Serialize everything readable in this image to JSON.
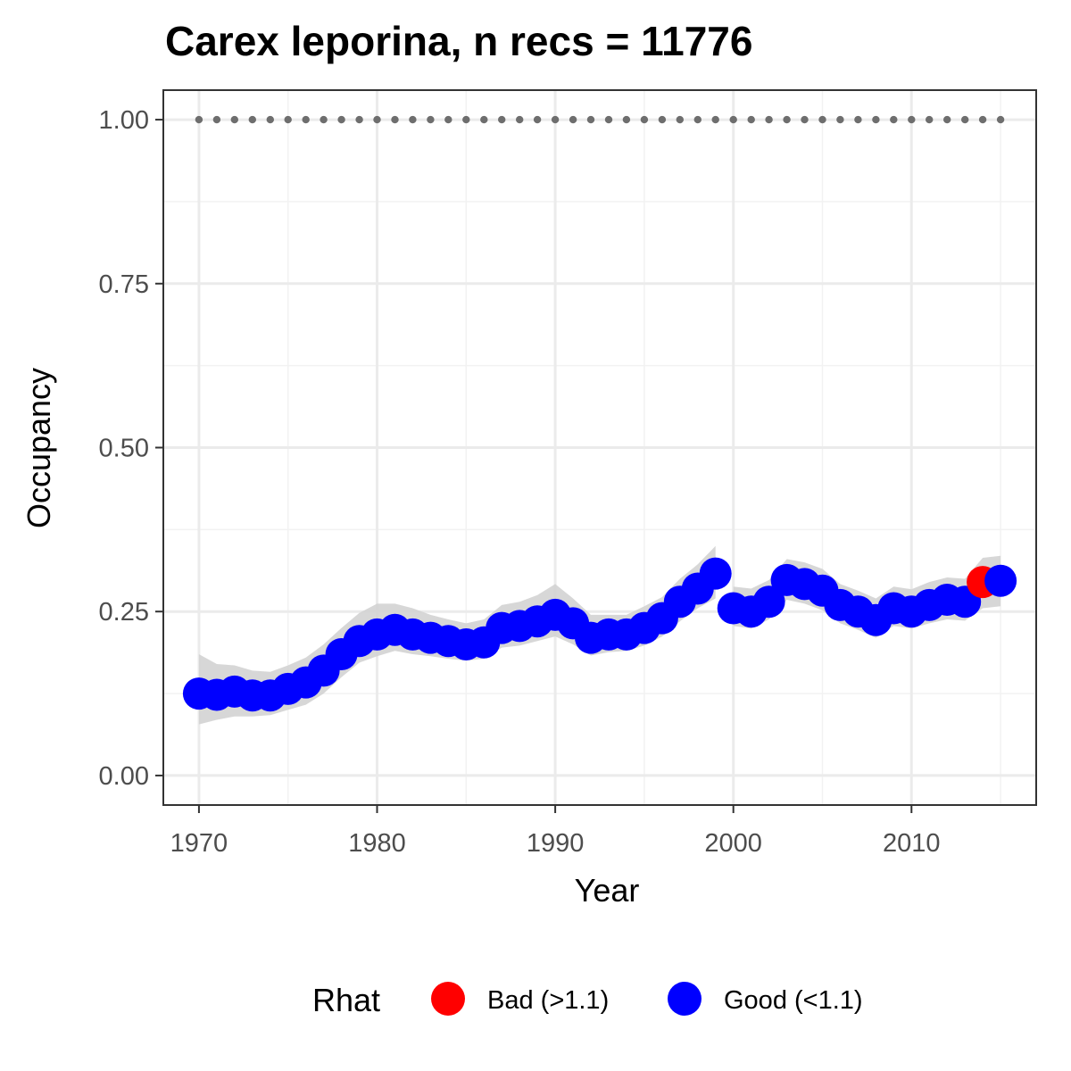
{
  "chart_data": {
    "type": "scatter",
    "title": "Carex leporina, n recs = 11776",
    "xlabel": "Year",
    "ylabel": "Occupancy",
    "xlim": [
      1968,
      2017
    ],
    "ylim": [
      -0.045,
      1.045
    ],
    "x_ticks": [
      1970,
      1980,
      1990,
      2000,
      2010
    ],
    "x_tick_labels": [
      "1970",
      "1980",
      "1990",
      "2000",
      "2010"
    ],
    "y_ticks": [
      0,
      0.25,
      0.5,
      0.75,
      1
    ],
    "y_tick_labels": [
      "0.00",
      "0.25",
      "0.50",
      "0.75",
      "1.00"
    ],
    "grid": true,
    "legend": {
      "title": "Rhat",
      "placement": "bottom",
      "entries": [
        {
          "label": "Bad (>1.1)",
          "color": "#ff0000"
        },
        {
          "label": "Good (<1.1)",
          "color": "#0000ff"
        }
      ]
    },
    "colors": {
      "bad": "#ff0000",
      "good": "#0000ff",
      "ribbon": "#d3d3d3",
      "reference": "#6e6e6e"
    },
    "reference_line": {
      "y": 1.0,
      "style": "dotted"
    },
    "series": [
      {
        "years": [
          1970,
          1971,
          1972,
          1973,
          1974,
          1975,
          1976,
          1977,
          1978,
          1979,
          1980,
          1981,
          1982,
          1983,
          1984,
          1985,
          1986,
          1987,
          1988,
          1989,
          1990,
          1991,
          1992,
          1993,
          1994,
          1995,
          1996,
          1997,
          1998,
          1999
        ],
        "mean": [
          0.125,
          0.123,
          0.128,
          0.122,
          0.122,
          0.132,
          0.142,
          0.16,
          0.185,
          0.205,
          0.215,
          0.222,
          0.215,
          0.21,
          0.205,
          0.2,
          0.203,
          0.225,
          0.228,
          0.235,
          0.245,
          0.232,
          0.21,
          0.215,
          0.215,
          0.225,
          0.24,
          0.265,
          0.285,
          0.308
        ],
        "lower": [
          0.078,
          0.085,
          0.09,
          0.09,
          0.092,
          0.1,
          0.108,
          0.125,
          0.15,
          0.172,
          0.182,
          0.19,
          0.185,
          0.182,
          0.178,
          0.175,
          0.178,
          0.195,
          0.198,
          0.205,
          0.212,
          0.2,
          0.183,
          0.188,
          0.19,
          0.198,
          0.212,
          0.235,
          0.255,
          0.27
        ],
        "upper": [
          0.185,
          0.17,
          0.168,
          0.16,
          0.158,
          0.168,
          0.18,
          0.2,
          0.225,
          0.248,
          0.262,
          0.262,
          0.255,
          0.245,
          0.238,
          0.232,
          0.238,
          0.26,
          0.265,
          0.275,
          0.292,
          0.27,
          0.245,
          0.245,
          0.245,
          0.258,
          0.272,
          0.3,
          0.322,
          0.35
        ],
        "rhat": [
          "good",
          "good",
          "good",
          "good",
          "good",
          "good",
          "good",
          "good",
          "good",
          "good",
          "good",
          "good",
          "good",
          "good",
          "good",
          "good",
          "good",
          "good",
          "good",
          "good",
          "good",
          "good",
          "good",
          "good",
          "good",
          "good",
          "good",
          "good",
          "good",
          "good"
        ]
      },
      {
        "years": [
          2000,
          2001,
          2002,
          2003,
          2004,
          2005,
          2006,
          2007,
          2008,
          2009,
          2010,
          2011,
          2012,
          2013,
          2014,
          2015
        ],
        "mean": [
          0.255,
          0.25,
          0.265,
          0.298,
          0.292,
          0.282,
          0.26,
          0.25,
          0.237,
          0.255,
          0.25,
          0.26,
          0.268,
          0.265,
          0.295,
          0.297
        ],
        "lower": [
          0.228,
          0.224,
          0.238,
          0.268,
          0.262,
          0.252,
          0.232,
          0.222,
          0.21,
          0.228,
          0.224,
          0.232,
          0.238,
          0.236,
          0.255,
          0.258
        ],
        "upper": [
          0.288,
          0.285,
          0.298,
          0.33,
          0.325,
          0.315,
          0.292,
          0.282,
          0.27,
          0.288,
          0.284,
          0.295,
          0.302,
          0.3,
          0.332,
          0.335
        ],
        "rhat": [
          "good",
          "good",
          "good",
          "good",
          "good",
          "good",
          "good",
          "good",
          "good",
          "good",
          "good",
          "good",
          "good",
          "good",
          "bad",
          "good"
        ]
      }
    ]
  }
}
